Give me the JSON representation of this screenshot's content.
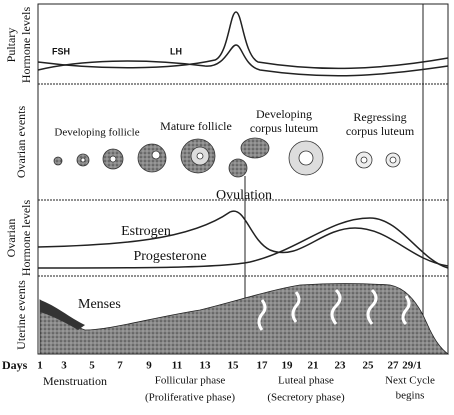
{
  "side_labels": {
    "pituitary": [
      "Pultary",
      "Hormone levels"
    ],
    "ovarian_events": [
      "Ovarian events"
    ],
    "ovarian_hormones": [
      "Ovarian",
      "Hormone levels"
    ],
    "uterine": [
      "Uterine events"
    ]
  },
  "pituitary": {
    "fsh": "FSH",
    "lh": "LH"
  },
  "ovarian_events": {
    "developing_follicle": "Developing follicle",
    "mature_follicle": "Mature follicle",
    "developing_corpus_luteum": [
      "Developing",
      "corpus luteum"
    ],
    "regressing_corpus_luteum": [
      "Regressing",
      "corpus luteum"
    ],
    "ovulation": "Ovulation"
  },
  "ovarian_hormones": {
    "estrogen": "Estrogen",
    "progesterone": "Progesterone"
  },
  "uterine": {
    "menses": "Menses"
  },
  "days": {
    "label": "Days",
    "ticks": [
      "1",
      "3",
      "5",
      "7",
      "9",
      "11",
      "13",
      "15",
      "17",
      "19",
      "21",
      "23",
      "25",
      "27",
      "29/1"
    ]
  },
  "phases": {
    "menstruation": "Menstruation",
    "follicular": [
      "Follicular phase",
      "(Proliferative phase)"
    ],
    "luteal": [
      "Luteal phase",
      "(Secretory phase)"
    ],
    "next_cycle": [
      "Next Cycle",
      "begins"
    ]
  }
}
